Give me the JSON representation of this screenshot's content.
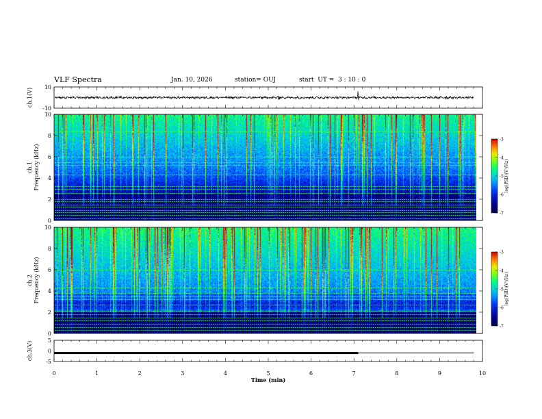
{
  "header": {
    "title": "VLF Spectra",
    "date": "Jan. 10, 2026",
    "station": "station= OUJ",
    "start_ut": "start  UT =  3 : 10 : 0"
  },
  "colors": {
    "trace": "#000000",
    "frame": "#000000",
    "cmap_low": "#000080",
    "cmap_mid": "#00ff00",
    "cmap_high": "#ff0000"
  },
  "chart_data": [
    {
      "type": "line",
      "name": "ch1-waveform",
      "ylabel": "ch.1(V)",
      "ylim": [
        -10,
        10
      ],
      "yticks": [
        "10",
        "-10"
      ],
      "xlim": [
        0,
        10
      ],
      "mean": 0,
      "spike_x": [
        5.25,
        7.1,
        9.15
      ],
      "note": "noisy trace near 0 V, trace ends at 9.8 min"
    },
    {
      "type": "heatmap",
      "name": "ch1-spectrogram",
      "ylabel_line1": "ch.1",
      "ylabel_line2": "Frequency (kHz)",
      "ylim": [
        0,
        10
      ],
      "yticks": [
        "0",
        "2",
        "4",
        "6",
        "8",
        "10"
      ],
      "xlim": [
        0,
        10
      ],
      "data_xmax": 9.85,
      "colorbar": {
        "label": "log(PSD)(V²/Hz)",
        "range": [
          -7,
          -3
        ],
        "ticks": [
          "-3",
          "-4",
          "-5",
          "-6",
          "-7"
        ]
      },
      "lines_khz": [
        0.2,
        0.5,
        0.8,
        1.0,
        1.3,
        1.5,
        1.8,
        2.0,
        2.6,
        3.0,
        3.2,
        4.3,
        5.2,
        5.5,
        6.0,
        8.4
      ]
    },
    {
      "type": "heatmap",
      "name": "ch2-spectrogram",
      "ylabel_line1": "ch.2",
      "ylabel_line2": "Frequency (kHz)",
      "ylim": [
        0,
        10
      ],
      "yticks": [
        "0",
        "2",
        "4",
        "6",
        "8",
        "10"
      ],
      "xlim": [
        0,
        10
      ],
      "data_xmax": 9.85,
      "colorbar": {
        "label": "log(PSD)(V²/Hz)",
        "range": [
          -7,
          -3
        ],
        "ticks": [
          "-3",
          "-4",
          "-5",
          "-6",
          "-7"
        ]
      },
      "lines_khz": [
        0.3,
        0.6,
        0.9,
        1.2,
        1.5,
        1.8,
        2.1,
        2.7,
        3.2,
        3.5,
        3.8,
        4.3,
        6.0
      ]
    },
    {
      "type": "line",
      "name": "ch3-trace",
      "ylabel": "ch.3(V)",
      "ylim": [
        -5,
        5
      ],
      "yticks": [
        "5",
        "0",
        "-5"
      ],
      "xlim": [
        0,
        10
      ],
      "segments": [
        {
          "x": [
            0,
            7.1
          ],
          "y": -1.0,
          "weight": "thick"
        },
        {
          "x": [
            7.1,
            9.8
          ],
          "y": -1.0,
          "weight": "thin"
        }
      ],
      "xlabel": "Time (min)",
      "xticks": [
        "0",
        "1",
        "2",
        "3",
        "4",
        "5",
        "6",
        "7",
        "8",
        "9",
        "10"
      ]
    }
  ]
}
